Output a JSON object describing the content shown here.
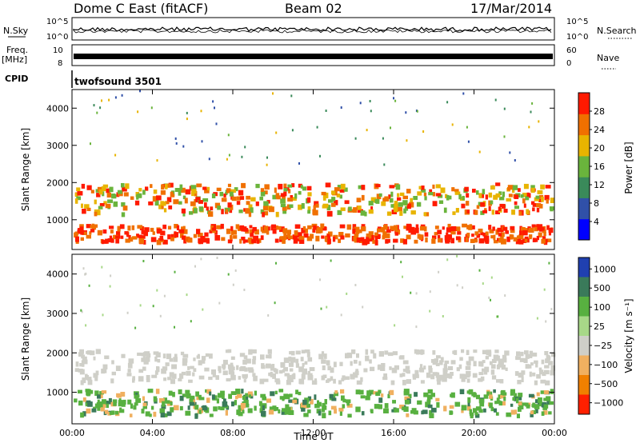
{
  "header": {
    "title": "Dome C East (fitACF)",
    "beam": "Beam 02",
    "date": "17/Mar/2014"
  },
  "strip_nsky": {
    "left_label": "N.Sky",
    "right_label": "N.Search",
    "tick_top": "10^5",
    "tick_bottom": "10^0",
    "right_tick_top": "10^5",
    "right_tick_bottom": "10^0"
  },
  "strip_freq": {
    "left_label_1": "Freq.",
    "left_label_2": "[MHz]",
    "tick_top": "10",
    "tick_bottom": "8",
    "right_label": "Nave",
    "right_tick_top": "60",
    "right_tick_bottom": "0"
  },
  "strip_cpid": {
    "left_label": "CPID",
    "program": "twofsound 3501"
  },
  "chart_data": [
    {
      "type": "heatmap",
      "name": "power-panel",
      "xlabel": "",
      "ylabel": "Slant Range [km]",
      "x_range_hours": [
        0,
        24
      ],
      "ylim": [
        200,
        4500
      ],
      "y_ticks": [
        "1000",
        "2000",
        "3000",
        "4000"
      ],
      "colorbar": {
        "label": "Power [dB]",
        "ticks": [
          "4",
          "8",
          "12",
          "16",
          "20",
          "24",
          "28"
        ],
        "colors": [
          "#0000ff",
          "#3050a8",
          "#3a8a5a",
          "#6ab43c",
          "#e8b400",
          "#f07000",
          "#ff1a00"
        ]
      },
      "bands_km": [
        {
          "from": 450,
          "to": 900,
          "level": 28
        },
        {
          "from": 1200,
          "to": 2000,
          "level": 22
        },
        {
          "from": 2500,
          "to": 4500,
          "level": 12
        }
      ]
    },
    {
      "type": "heatmap",
      "name": "velocity-panel",
      "xlabel": "Time UT",
      "ylabel": "Slant Range [km]",
      "x_range_hours": [
        0,
        24
      ],
      "ylim": [
        200,
        4500
      ],
      "y_ticks": [
        "1000",
        "2000",
        "3000",
        "4000"
      ],
      "x_ticks": [
        "00:00",
        "04:00",
        "08:00",
        "12:00",
        "16:00",
        "20:00",
        "00:00"
      ],
      "colorbar": {
        "label": "Velocity [m s⁻¹]",
        "ticks": [
          "1000",
          "500",
          "100",
          "25",
          "−25",
          "−100",
          "−500",
          "−1000"
        ],
        "colors": [
          "#2040b0",
          "#3a7a5a",
          "#58b040",
          "#a8d888",
          "#cfcfc8",
          "#f0b060",
          "#f08000",
          "#ff2000"
        ]
      },
      "bands_km": [
        {
          "from": 450,
          "to": 1100,
          "level": 100
        },
        {
          "from": 1300,
          "to": 2100,
          "level": 0
        },
        {
          "from": 2600,
          "to": 4500,
          "level": 50
        }
      ]
    }
  ]
}
